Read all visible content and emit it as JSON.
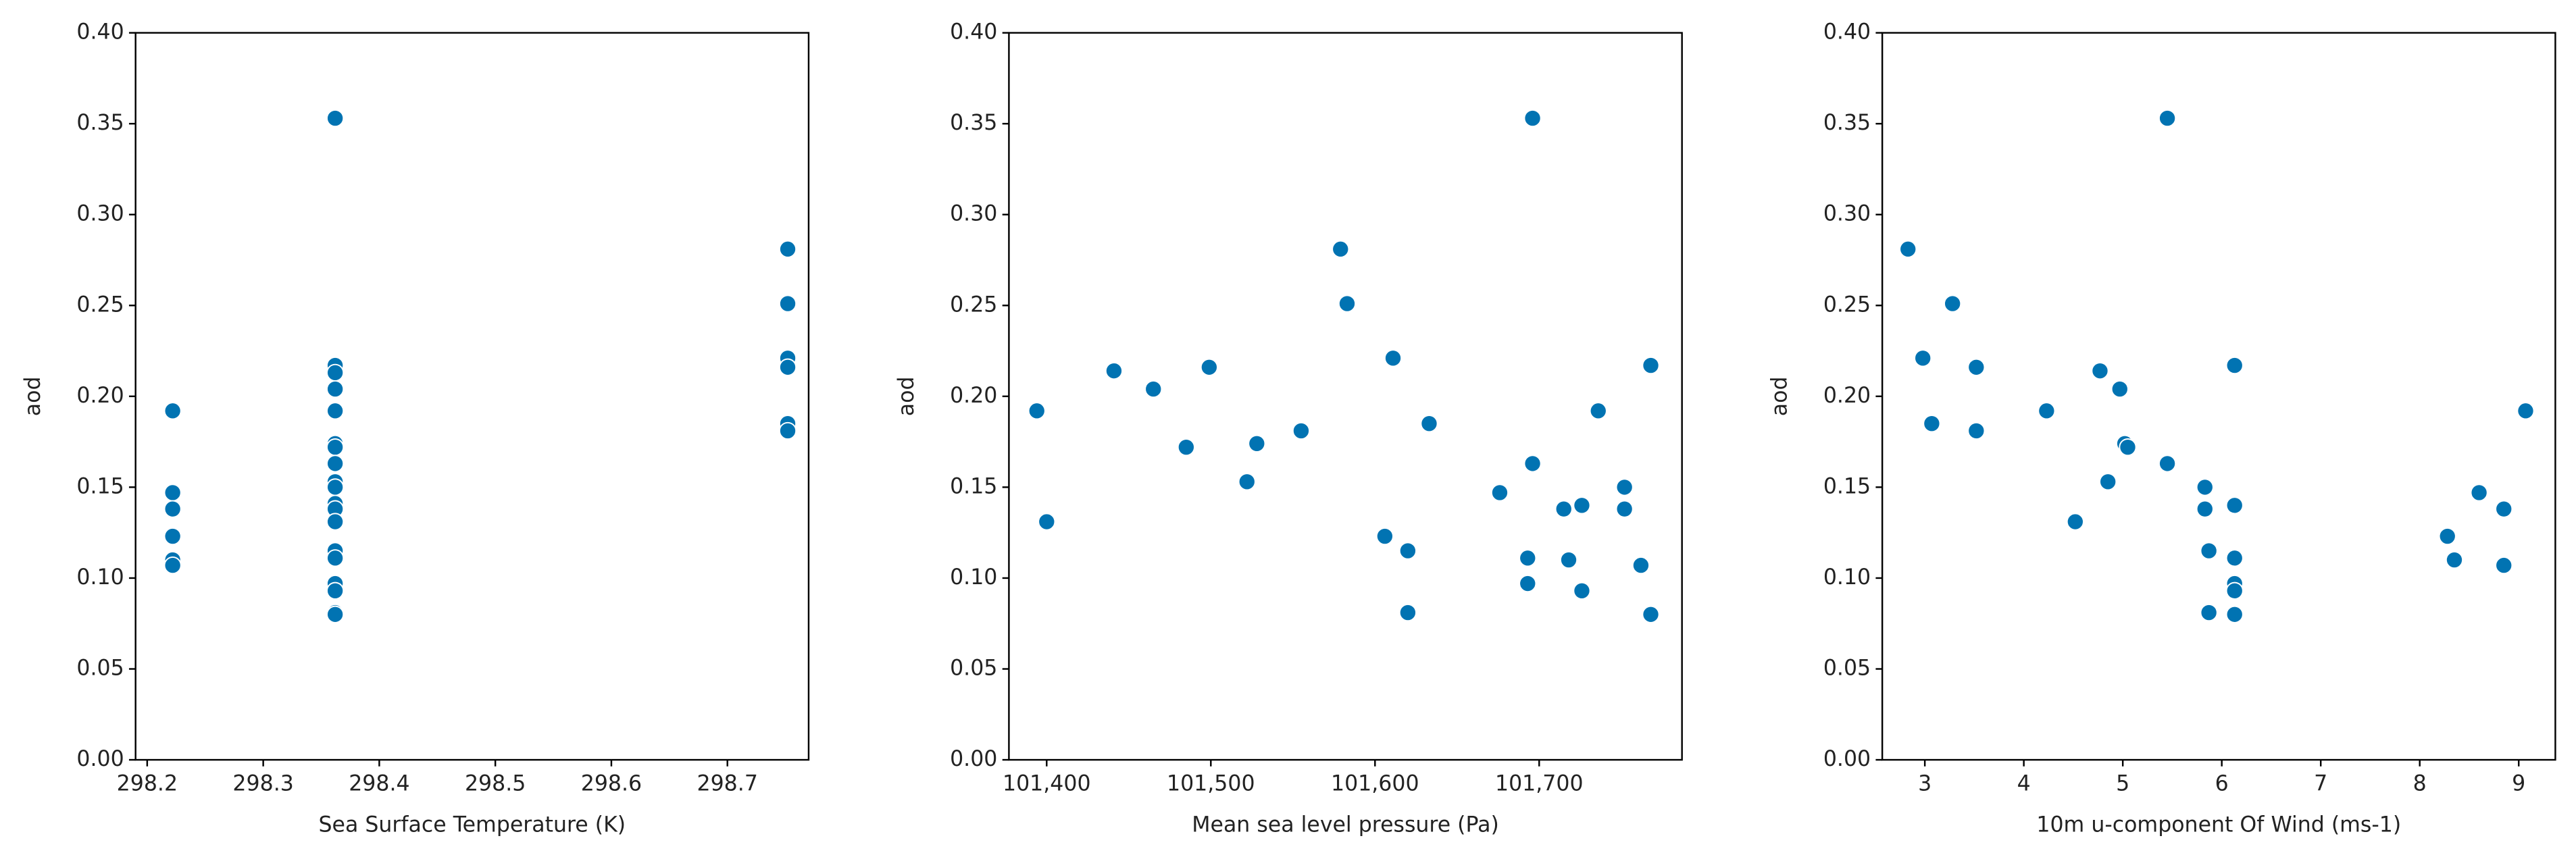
{
  "chart_data": [
    {
      "type": "scatter",
      "xlabel": "Sea Surface Temperature (K)",
      "ylabel": "aod",
      "color": "#0173b2",
      "x": [
        298.222,
        298.222,
        298.222,
        298.222,
        298.222,
        298.222,
        298.362,
        298.362,
        298.362,
        298.362,
        298.362,
        298.362,
        298.362,
        298.362,
        298.362,
        298.362,
        298.362,
        298.362,
        298.362,
        298.362,
        298.362,
        298.362,
        298.362,
        298.362,
        298.362,
        298.752,
        298.752,
        298.752,
        298.752,
        298.752,
        298.752
      ],
      "values": [
        0.192,
        0.147,
        0.138,
        0.123,
        0.11,
        0.107,
        0.353,
        0.217,
        0.213,
        0.204,
        0.192,
        0.174,
        0.172,
        0.163,
        0.153,
        0.15,
        0.141,
        0.138,
        0.131,
        0.115,
        0.111,
        0.097,
        0.093,
        0.081,
        0.08,
        0.281,
        0.251,
        0.221,
        0.216,
        0.185,
        0.181
      ],
      "xlim": [
        298.19,
        298.77
      ],
      "xticks": [
        298.2,
        298.3,
        298.4,
        298.5,
        298.6,
        298.7
      ],
      "ylim": [
        0,
        0.4
      ],
      "yticks": [
        {
          "value": 0,
          "label": "0.00"
        },
        {
          "value": 0.05,
          "label": "0.05"
        },
        {
          "value": 0.1,
          "label": "0.10"
        },
        {
          "value": 0.15,
          "label": "0.15"
        },
        {
          "value": 0.2,
          "label": "0.20"
        },
        {
          "value": 0.25,
          "label": "0.25"
        },
        {
          "value": 0.3,
          "label": "0.30"
        },
        {
          "value": 0.35,
          "label": "0.35"
        },
        {
          "value": 0.4,
          "label": "0.40"
        }
      ]
    },
    {
      "type": "scatter",
      "xlabel": "Mean sea level pressure (Pa)",
      "ylabel": "aod",
      "color": "#0173b2",
      "x": [
        101394,
        101400,
        101441,
        101465,
        101485,
        101499,
        101522,
        101528,
        101555,
        101579,
        101583,
        101611,
        101606,
        101620,
        101620,
        101633,
        101676,
        101696,
        101696,
        101693,
        101693,
        101715,
        101718,
        101726,
        101726,
        101736,
        101752,
        101752,
        101762,
        101768,
        101768
      ],
      "values": [
        0.192,
        0.131,
        0.214,
        0.204,
        0.172,
        0.216,
        0.153,
        0.174,
        0.181,
        0.281,
        0.251,
        0.221,
        0.123,
        0.115,
        0.081,
        0.185,
        0.147,
        0.353,
        0.163,
        0.111,
        0.097,
        0.138,
        0.11,
        0.14,
        0.093,
        0.192,
        0.15,
        0.138,
        0.107,
        0.217,
        0.08
      ],
      "xlim": [
        101377,
        101787
      ],
      "xticks": [
        {
          "value": 101400,
          "label": "101,400"
        },
        {
          "value": 101500,
          "label": "101,500"
        },
        {
          "value": 101600,
          "label": "101,600"
        },
        {
          "value": 101700,
          "label": "101,700"
        }
      ],
      "ylim": [
        0,
        0.4
      ],
      "yticks": [
        {
          "value": 0,
          "label": "0.00"
        },
        {
          "value": 0.05,
          "label": "0.05"
        },
        {
          "value": 0.1,
          "label": "0.10"
        },
        {
          "value": 0.15,
          "label": "0.15"
        },
        {
          "value": 0.2,
          "label": "0.20"
        },
        {
          "value": 0.25,
          "label": "0.25"
        },
        {
          "value": 0.3,
          "label": "0.30"
        },
        {
          "value": 0.35,
          "label": "0.35"
        },
        {
          "value": 0.4,
          "label": "0.40"
        }
      ]
    },
    {
      "type": "scatter",
      "xlabel": "10m u-component Of Wind (ms-1)",
      "ylabel": "aod",
      "color": "#0173b2",
      "x": [
        2.83,
        2.98,
        3.07,
        3.28,
        3.52,
        3.52,
        4.23,
        4.52,
        4.77,
        4.85,
        4.97,
        5.02,
        5.05,
        5.45,
        5.45,
        5.83,
        5.83,
        5.87,
        5.87,
        6.13,
        6.13,
        6.13,
        6.13,
        6.13,
        6.13,
        8.28,
        8.35,
        8.6,
        8.85,
        8.85,
        9.07
      ],
      "values": [
        0.281,
        0.221,
        0.185,
        0.251,
        0.216,
        0.181,
        0.192,
        0.131,
        0.214,
        0.153,
        0.204,
        0.174,
        0.172,
        0.353,
        0.163,
        0.15,
        0.138,
        0.115,
        0.081,
        0.217,
        0.14,
        0.111,
        0.097,
        0.093,
        0.08,
        0.123,
        0.11,
        0.147,
        0.138,
        0.107,
        0.192
      ],
      "xlim": [
        2.57,
        9.37
      ],
      "xticks": [
        3,
        4,
        5,
        6,
        7,
        8,
        9
      ],
      "ylim": [
        0,
        0.4
      ],
      "yticks": [
        {
          "value": 0,
          "label": "0.00"
        },
        {
          "value": 0.05,
          "label": "0.05"
        },
        {
          "value": 0.1,
          "label": "0.10"
        },
        {
          "value": 0.15,
          "label": "0.15"
        },
        {
          "value": 0.2,
          "label": "0.20"
        },
        {
          "value": 0.25,
          "label": "0.25"
        },
        {
          "value": 0.3,
          "label": "0.30"
        },
        {
          "value": 0.35,
          "label": "0.35"
        },
        {
          "value": 0.4,
          "label": "0.40"
        }
      ]
    }
  ]
}
